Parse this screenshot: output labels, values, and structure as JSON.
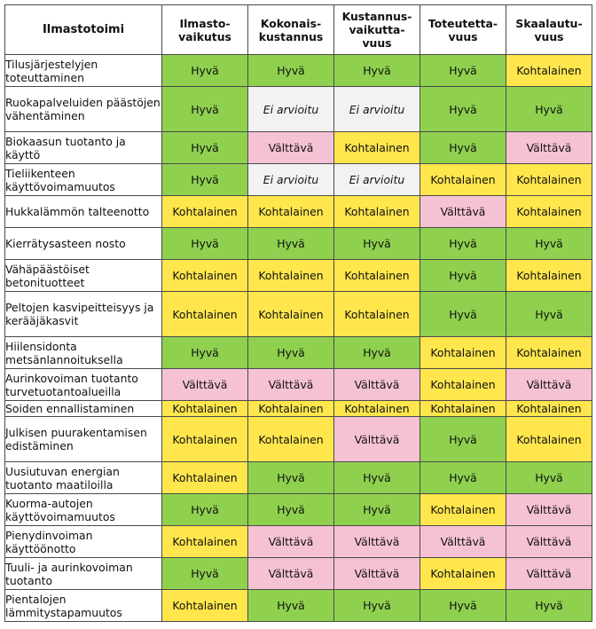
{
  "headers": [
    "Ilmastotoimi",
    "Ilmasto-\nvaikutus",
    "Kokonais-\nkustannus",
    "Kustannus-\nvaikutta-\nvuus",
    "Toteutetta-\nvuus",
    "Skaalautu-\nvuus"
  ],
  "rows": [
    {
      "name": "Tilusjärjestelyjen toteuttaminen",
      "values": [
        "Hyvä",
        "Hyvä",
        "Hyvä",
        "Hyvä",
        "Kohtalainen"
      ]
    },
    {
      "name": "Ruokapalveluiden päästöjen vähentäminen",
      "values": [
        "Hyvä",
        "Ei arvioitu",
        "Ei arvioitu",
        "Hyvä",
        "Hyvä"
      ]
    },
    {
      "name": "Biokaasun tuotanto ja käyttö",
      "values": [
        "Hyvä",
        "Välttävä",
        "Kohtalainen",
        "Hyvä",
        "Välttävä"
      ]
    },
    {
      "name": "Tieliikenteen käyttövoimamuutos",
      "values": [
        "Hyvä",
        "Ei arvioitu",
        "Ei arvioitu",
        "Kohtalainen",
        "Kohtalainen"
      ]
    },
    {
      "name": "Hukkalämmön talteenotto",
      "values": [
        "Kohtalainen",
        "Kohtalainen",
        "Kohtalainen",
        "Välttävä",
        "Kohtalainen"
      ]
    },
    {
      "name": "Kierrätysasteen nosto",
      "values": [
        "Hyvä",
        "Hyvä",
        "Hyvä",
        "Hyvä",
        "Hyvä"
      ]
    },
    {
      "name": "Vähäpäästöiset betonituotteet",
      "values": [
        "Kohtalainen",
        "Kohtalainen",
        "Kohtalainen",
        "Hyvä",
        "Kohtalainen"
      ]
    },
    {
      "name": "Peltojen kasvipeitteisyys ja kerääjäkasvit",
      "values": [
        "Kohtalainen",
        "Kohtalainen",
        "Kohtalainen",
        "Hyvä",
        "Hyvä"
      ]
    },
    {
      "name": "Hiilensidonta metsänlannoituksella",
      "values": [
        "Hyvä",
        "Hyvä",
        "Hyvä",
        "Kohtalainen",
        "Kohtalainen"
      ]
    },
    {
      "name": "Aurinkovoiman tuotanto turvetuotantoalueilla",
      "values": [
        "Välttävä",
        "Välttävä",
        "Välttävä",
        "Kohtalainen",
        "Välttävä"
      ]
    },
    {
      "name": "Soiden ennallistaminen",
      "values": [
        "Kohtalainen",
        "Kohtalainen",
        "Kohtalainen",
        "Kohtalainen",
        "Kohtalainen"
      ]
    },
    {
      "name": "Julkisen puurakentamisen edistäminen",
      "values": [
        "Kohtalainen",
        "Kohtalainen",
        "Välttävä",
        "Hyvä",
        "Kohtalainen"
      ]
    },
    {
      "name": "Uusiutuvan energian tuotanto maatiloilla",
      "values": [
        "Kohtalainen",
        "Hyvä",
        "Hyvä",
        "Hyvä",
        "Hyvä"
      ]
    },
    {
      "name": "Kuorma-autojen käyttövoimamuutos",
      "values": [
        "Hyvä",
        "Hyvä",
        "Hyvä",
        "Kohtalainen",
        "Välttävä"
      ]
    },
    {
      "name": "Pienydinvoiman käyttöönotto",
      "values": [
        "Kohtalainen",
        "Välttävä",
        "Välttävä",
        "Välttävä",
        "Välttävä"
      ]
    },
    {
      "name": "Tuuli- ja aurinkovoiman tuotanto",
      "values": [
        "Hyvä",
        "Välttävä",
        "Välttävä",
        "Kohtalainen",
        "Välttävä"
      ]
    },
    {
      "name": "Pientalojen lämmitystapamuutos",
      "values": [
        "Kohtalainen",
        "Hyvä",
        "Hyvä",
        "Hyvä",
        "Hyvä"
      ]
    }
  ],
  "colors": {
    "Hyvä": "#8fd14f",
    "Kohtalainen": "#ffe64d",
    "Välttävä": "#f5c2d3",
    "Ei arvioitu": "#f2f2f2"
  }
}
